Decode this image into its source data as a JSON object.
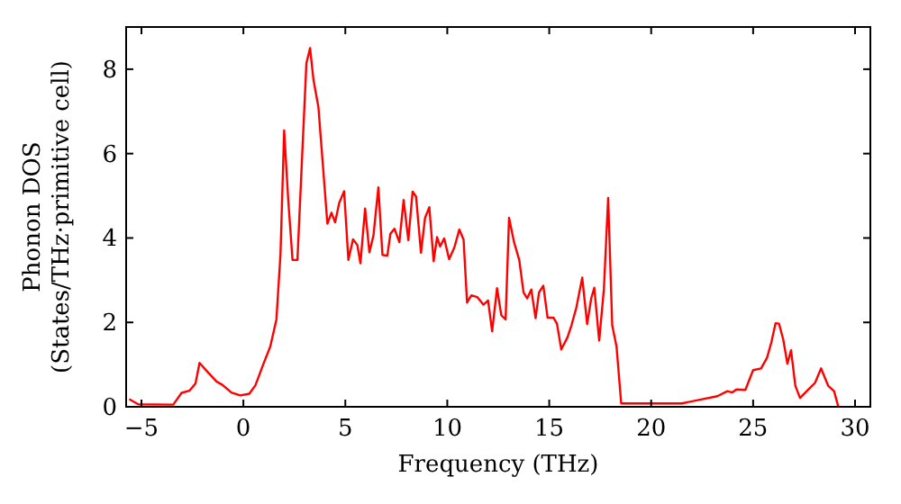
{
  "chart_data": {
    "type": "line",
    "xlabel": "Frequency (THz)",
    "ylabel": "Phonon DOS\n(States/THz·primitive cell)",
    "x": [
      -5.6,
      -5.15,
      -3.44,
      -3.03,
      -2.65,
      -2.35,
      -2.15,
      -1.76,
      -1.32,
      -1.03,
      -0.59,
      -0.15,
      0.29,
      0.59,
      0.97,
      1.32,
      1.62,
      1.82,
      2.0,
      2.2,
      2.41,
      2.65,
      2.85,
      3.09,
      3.27,
      3.44,
      3.68,
      4.12,
      4.32,
      4.5,
      4.7,
      4.94,
      5.15,
      5.38,
      5.59,
      5.74,
      5.97,
      6.18,
      6.38,
      6.62,
      6.82,
      7.06,
      7.21,
      7.41,
      7.65,
      7.86,
      8.09,
      8.3,
      8.47,
      8.71,
      8.91,
      9.12,
      9.33,
      9.5,
      9.65,
      9.85,
      10.09,
      10.35,
      10.59,
      10.8,
      10.97,
      11.18,
      11.47,
      11.77,
      12.0,
      12.2,
      12.44,
      12.65,
      12.86,
      13.03,
      13.27,
      13.53,
      13.74,
      13.92,
      14.12,
      14.33,
      14.5,
      14.71,
      14.92,
      15.21,
      15.38,
      15.59,
      15.89,
      16.09,
      16.33,
      16.62,
      16.86,
      17.06,
      17.21,
      17.45,
      17.68,
      17.89,
      18.09,
      18.3,
      18.53,
      20.0,
      21.5,
      22.5,
      23.24,
      23.74,
      23.98,
      24.18,
      24.62,
      25.0,
      25.39,
      25.68,
      25.89,
      26.1,
      26.27,
      26.48,
      26.68,
      26.86,
      27.07,
      27.3,
      27.65,
      28.04,
      28.33,
      28.68,
      28.97,
      29.18
    ],
    "series": [
      {
        "color": "#ff0000",
        "values": [
          0.18,
          0.06,
          0.05,
          0.33,
          0.38,
          0.55,
          1.04,
          0.83,
          0.6,
          0.52,
          0.34,
          0.27,
          0.31,
          0.51,
          1.0,
          1.43,
          2.07,
          3.62,
          6.55,
          4.9,
          3.48,
          3.48,
          5.6,
          8.14,
          8.5,
          7.74,
          7.1,
          4.34,
          4.6,
          4.37,
          4.83,
          5.11,
          3.48,
          3.97,
          3.83,
          3.4,
          4.7,
          3.66,
          4.06,
          5.2,
          3.6,
          3.58,
          4.1,
          4.22,
          3.9,
          4.9,
          3.95,
          5.1,
          4.98,
          3.65,
          4.48,
          4.73,
          3.45,
          4.02,
          3.8,
          3.99,
          3.5,
          3.78,
          4.2,
          3.96,
          2.47,
          2.64,
          2.6,
          2.42,
          2.52,
          1.79,
          2.81,
          2.17,
          2.07,
          4.48,
          3.91,
          3.48,
          2.71,
          2.57,
          2.78,
          2.1,
          2.71,
          2.87,
          2.11,
          2.11,
          1.97,
          1.36,
          1.64,
          1.93,
          2.35,
          3.06,
          1.96,
          2.57,
          2.82,
          1.57,
          2.78,
          4.95,
          1.93,
          1.43,
          0.08,
          0.08,
          0.08,
          0.18,
          0.25,
          0.37,
          0.34,
          0.41,
          0.4,
          0.87,
          0.91,
          1.16,
          1.52,
          1.98,
          1.97,
          1.59,
          1.02,
          1.34,
          0.5,
          0.21,
          0.38,
          0.57,
          0.91,
          0.5,
          0.37,
          0.0
        ]
      }
    ],
    "xlim": [
      -5.75,
      30.75
    ],
    "ylim": [
      0,
      9
    ],
    "xticks": [
      -5,
      0,
      5,
      10,
      15,
      20,
      25,
      30
    ],
    "yticks": [
      0,
      2,
      4,
      6,
      8
    ],
    "grid": false,
    "marker": "none",
    "line_style": "solid"
  }
}
